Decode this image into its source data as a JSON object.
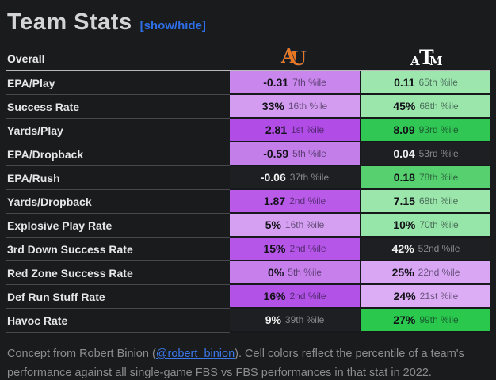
{
  "header": {
    "title": "Team Stats",
    "toggle_label": "[show/hide]"
  },
  "table": {
    "overall_label": "Overall",
    "teams": [
      {
        "id": "auburn",
        "logo": "AU",
        "color": "#e87722",
        "outline": "#0c2340"
      },
      {
        "id": "texas-am",
        "logo": "ATM",
        "color": "#ffffff"
      }
    ],
    "rows": [
      {
        "label": "EPA/Play",
        "t1": {
          "value": "-0.31",
          "pct": "7th %ile",
          "bg": "#c986ec"
        },
        "t2": {
          "value": "0.11",
          "pct": "65th %ile",
          "bg": "#9de7ae"
        }
      },
      {
        "label": "Success Rate",
        "t1": {
          "value": "33%",
          "pct": "16th %ile",
          "bg": "#d39cf0"
        },
        "t2": {
          "value": "45%",
          "pct": "68th %ile",
          "bg": "#9ae6ab"
        }
      },
      {
        "label": "Yards/Play",
        "t1": {
          "value": "2.81",
          "pct": "1st %ile",
          "bg": "#b14ce6"
        },
        "t2": {
          "value": "8.09",
          "pct": "93rd %ile",
          "bg": "#31c754"
        }
      },
      {
        "label": "EPA/Dropback",
        "t1": {
          "value": "-0.59",
          "pct": "5th %ile",
          "bg": "#c47eea"
        },
        "t2": {
          "value": "0.04",
          "pct": "53rd %ile",
          "bg": null
        }
      },
      {
        "label": "EPA/Rush",
        "t1": {
          "value": "-0.06",
          "pct": "37th %ile",
          "bg": null
        },
        "t2": {
          "value": "0.18",
          "pct": "78th %ile",
          "bg": "#57d16f"
        }
      },
      {
        "label": "Yards/Dropback",
        "t1": {
          "value": "1.87",
          "pct": "2nd %ile",
          "bg": "#b95ae9"
        },
        "t2": {
          "value": "7.15",
          "pct": "68th %ile",
          "bg": "#9ae6ab"
        }
      },
      {
        "label": "Explosive Play Rate",
        "t1": {
          "value": "5%",
          "pct": "16th %ile",
          "bg": "#d5a0f2"
        },
        "t2": {
          "value": "10%",
          "pct": "70th %ile",
          "bg": "#97e6a9"
        }
      },
      {
        "label": "3rd Down Success Rate",
        "t1": {
          "value": "15%",
          "pct": "2nd %ile",
          "bg": "#b556e8"
        },
        "t2": {
          "value": "42%",
          "pct": "52nd %ile",
          "bg": null
        }
      },
      {
        "label": "Red Zone Success Rate",
        "t1": {
          "value": "0%",
          "pct": "5th %ile",
          "bg": "#c77fec"
        },
        "t2": {
          "value": "25%",
          "pct": "22nd %ile",
          "bg": "#d8a6f3"
        }
      },
      {
        "label": "Def Run Stuff Rate",
        "t1": {
          "value": "16%",
          "pct": "2nd %ile",
          "bg": "#b252e6"
        },
        "t2": {
          "value": "24%",
          "pct": "21st %ile",
          "bg": "#dcadf5"
        }
      },
      {
        "label": "Havoc Rate",
        "t1": {
          "value": "9%",
          "pct": "39th %ile",
          "bg": null
        },
        "t2": {
          "value": "27%",
          "pct": "99th %ile",
          "bg": "#2bc84e"
        }
      }
    ]
  },
  "footer": {
    "line1_pre": "Concept from Robert Binion (",
    "link": "@robert_binion",
    "line1_post": "). Cell colors reflect the percentile of a team's",
    "line2": "performance against all single-game FBS vs FBS performances in that stat in 2022."
  }
}
